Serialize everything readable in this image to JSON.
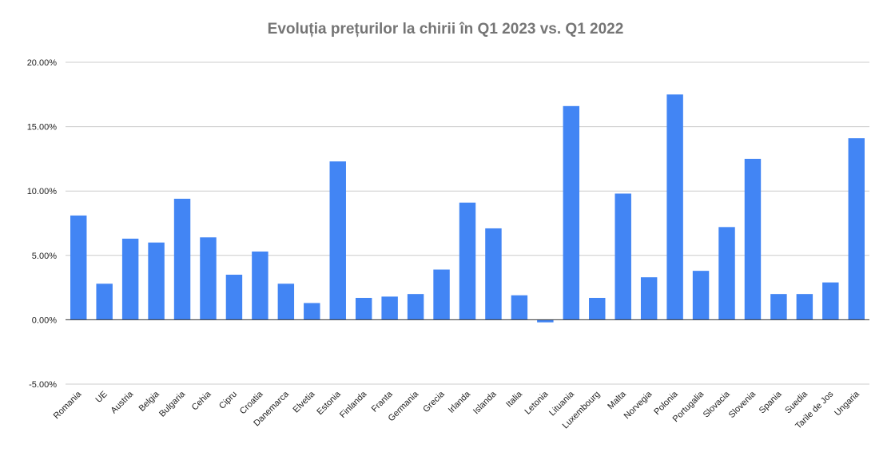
{
  "chart_data": {
    "type": "bar",
    "title": "Evoluția prețurilor la chirii în Q1 2023 vs. Q1 2022",
    "xlabel": "",
    "ylabel": "",
    "ylim": [
      -0.05,
      0.2
    ],
    "yticks": [
      {
        "value": 0.2,
        "label": "20.00%"
      },
      {
        "value": 0.15,
        "label": "15.00%"
      },
      {
        "value": 0.1,
        "label": "10.00%"
      },
      {
        "value": 0.05,
        "label": "5.00%"
      },
      {
        "value": 0.0,
        "label": "0.00%"
      },
      {
        "value": -0.05,
        "label": "-5.00%"
      }
    ],
    "grid": true,
    "legend": "none",
    "bar_color": "#4285f4",
    "categories": [
      "Romania",
      "UE",
      "Austria",
      "Belgia",
      "Bulgaria",
      "Cehia",
      "Cipru",
      "Croatia",
      "Danemarca",
      "Elvetia",
      "Estonia",
      "Finlanda",
      "Franta",
      "Germania",
      "Grecia",
      "Irlanda",
      "Islanda",
      "Italia",
      "Letonia",
      "Lituania",
      "Luxembourg",
      "Malta",
      "Norvegia",
      "Polonia",
      "Portugalia",
      "Slovacia",
      "Slovenia",
      "Spania",
      "Suedia",
      "Tarile de Jos",
      "Ungaria"
    ],
    "values": [
      0.081,
      0.028,
      0.063,
      0.06,
      0.094,
      0.064,
      0.035,
      0.053,
      0.028,
      0.013,
      0.123,
      0.017,
      0.018,
      0.02,
      0.039,
      0.091,
      0.071,
      0.019,
      -0.002,
      0.166,
      0.017,
      0.098,
      0.033,
      0.175,
      0.038,
      0.072,
      0.125,
      0.02,
      0.02,
      0.029,
      0.141
    ]
  }
}
